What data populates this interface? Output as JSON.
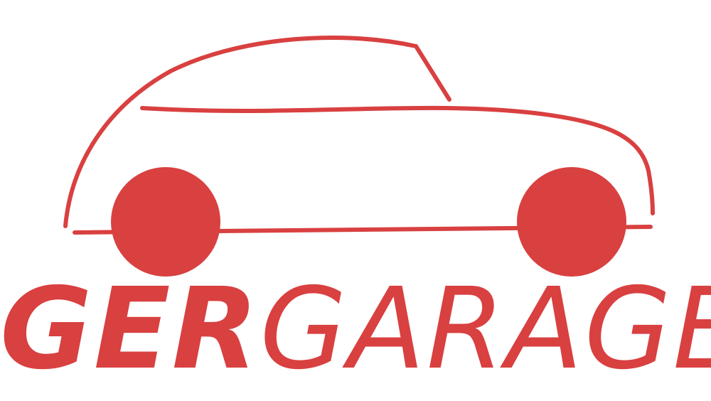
{
  "brand": {
    "text_bold": "GER",
    "text_regular": "GARAGE",
    "color": "#d94040"
  },
  "logo": {
    "icon": "car-outline-icon"
  }
}
